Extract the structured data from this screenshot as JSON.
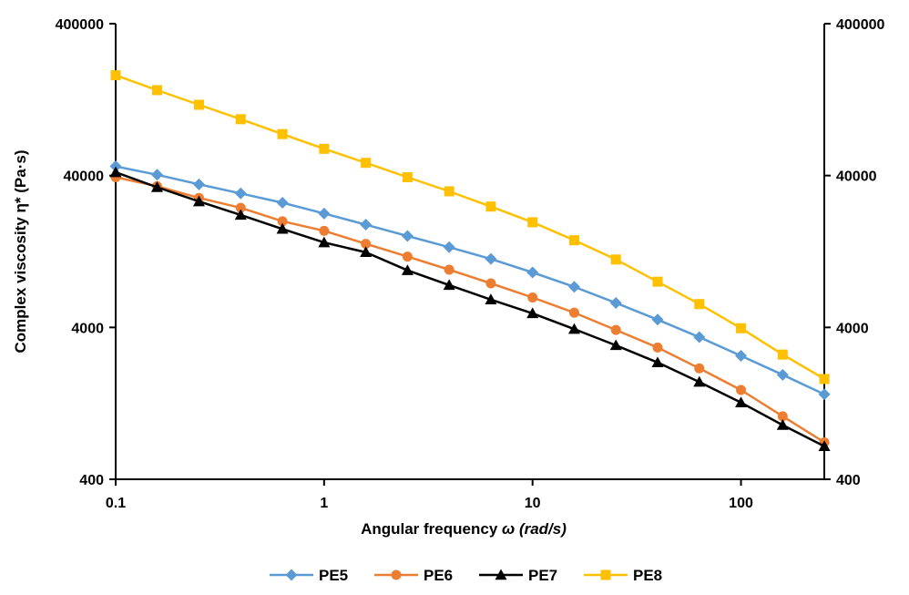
{
  "chart_data": {
    "type": "line",
    "xlabel": "Angular frequency",
    "xlabel_symbol": "ω",
    "xlabel_unit": "(rad/s)",
    "ylabel": "Complex viscosity η* (Pa·s)",
    "x_scale": "log",
    "y_scale": "log",
    "xlim": [
      0.1,
      251
    ],
    "ylim": [
      400,
      400000
    ],
    "y2lim": [
      400,
      400000
    ],
    "x_ticks": [
      0.1,
      1,
      10,
      100
    ],
    "x_tick_labels": [
      "0.1",
      "1",
      "10",
      "100"
    ],
    "y_ticks": [
      400,
      4000,
      40000,
      400000
    ],
    "y_tick_labels": [
      "400",
      "4000",
      "40000",
      "400000"
    ],
    "y2_tick_labels": [
      "400",
      "4000",
      "40000",
      "400000"
    ],
    "grid": false,
    "legend_position": "bottom",
    "x": [
      0.1,
      0.158,
      0.251,
      0.398,
      0.631,
      1,
      1.585,
      2.512,
      3.981,
      6.31,
      10,
      15.85,
      25.12,
      39.81,
      63.1,
      100,
      158.5,
      251.2
    ],
    "series": [
      {
        "name": "PE5",
        "color": "#5b9bd5",
        "marker": "diamond",
        "values": [
          46000,
          40500,
          35000,
          30500,
          26500,
          22500,
          19000,
          16000,
          13500,
          11300,
          9200,
          7400,
          5800,
          4500,
          3450,
          2600,
          1950,
          1450
        ]
      },
      {
        "name": "PE6",
        "color": "#ed7d31",
        "marker": "circle",
        "values": [
          39000,
          34000,
          28500,
          24500,
          20000,
          17300,
          14200,
          11700,
          9600,
          7800,
          6300,
          5000,
          3850,
          2950,
          2150,
          1550,
          1040,
          700
        ]
      },
      {
        "name": "PE7",
        "color": "#000000",
        "marker": "triangle",
        "values": [
          42000,
          33500,
          27000,
          22000,
          17800,
          14500,
          12500,
          9500,
          7600,
          6100,
          4950,
          3900,
          3050,
          2350,
          1750,
          1280,
          910,
          660
        ]
      },
      {
        "name": "PE8",
        "color": "#ffc000",
        "marker": "square",
        "values": [
          183000,
          146000,
          117000,
          94000,
          75000,
          60000,
          48500,
          39000,
          31500,
          25000,
          19700,
          15000,
          11200,
          8000,
          5700,
          3950,
          2650,
          1830
        ]
      }
    ]
  }
}
